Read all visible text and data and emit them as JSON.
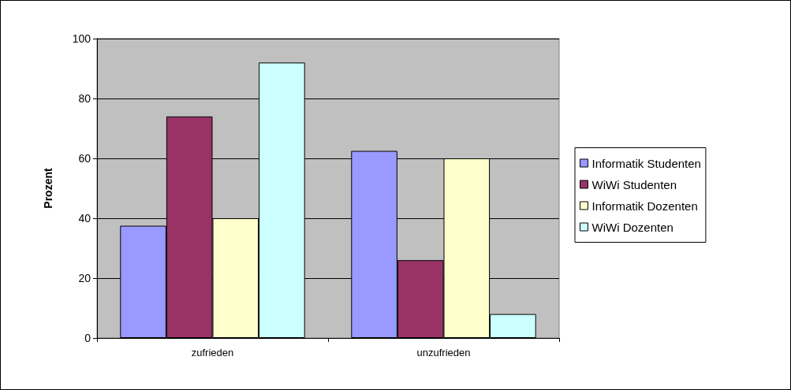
{
  "chart_data": {
    "type": "bar",
    "ylabel": "Prozent",
    "categories": [
      "zufrieden",
      "unzufrieden"
    ],
    "series": [
      {
        "name": "Informatik Studenten",
        "color": "#9999ff",
        "values": [
          37.5,
          62.5
        ]
      },
      {
        "name": "WiWi Studenten",
        "color": "#993366",
        "values": [
          74,
          26
        ]
      },
      {
        "name": "Informatik Dozenten",
        "color": "#ffffcc",
        "values": [
          40,
          60
        ]
      },
      {
        "name": "WiWi Dozenten",
        "color": "#ccffff",
        "values": [
          92,
          8
        ]
      }
    ],
    "ylim": [
      0,
      100
    ],
    "yticks": [
      0,
      20,
      40,
      60,
      80,
      100
    ],
    "grid": "y",
    "legend": "right"
  }
}
